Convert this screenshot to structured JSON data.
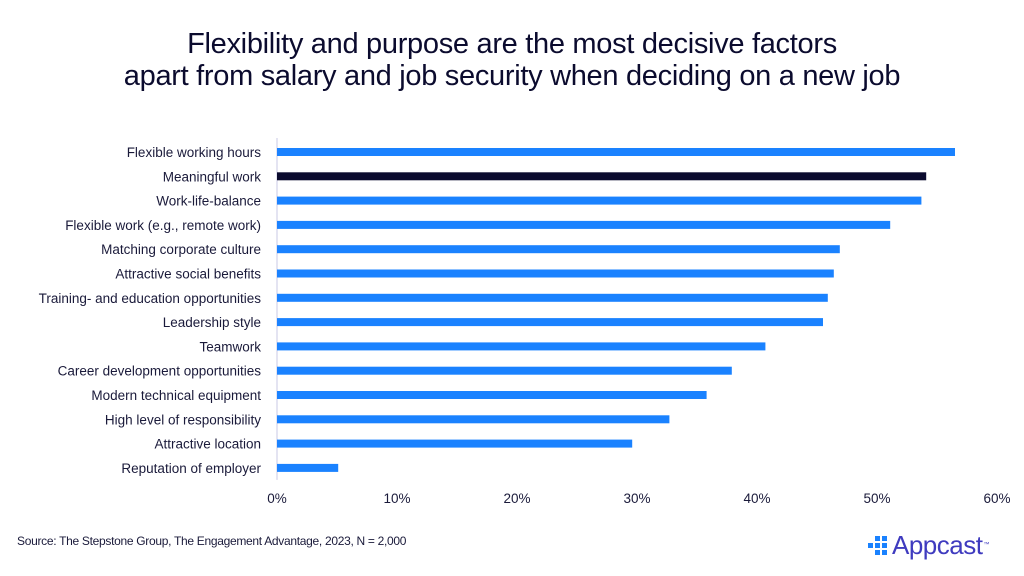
{
  "title_line1": "Flexibility and purpose are the most decisive factors",
  "title_line2": "apart from salary and job security when deciding on a new job",
  "source": "Source: The Stepstone Group, The Engagement Advantage, 2023, N = 2,000",
  "logo": {
    "text": "Appcast",
    "trademark": "™",
    "icon": "dot-grid-icon"
  },
  "colors": {
    "bar": "#1a82ff",
    "highlight": "#0b0b2e",
    "axis": "#c9c9e6",
    "text": "#1a1a3a"
  },
  "chart_data": {
    "type": "bar",
    "orientation": "horizontal",
    "title": "Flexibility and purpose are the most decisive factors apart from salary and job security when deciding on a new job",
    "xlabel": "",
    "ylabel": "",
    "xlim": [
      0,
      60
    ],
    "x_ticks": [
      "0%",
      "10%",
      "20%",
      "30%",
      "40%",
      "50%",
      "60%"
    ],
    "x_tick_values": [
      0,
      10,
      20,
      30,
      40,
      50,
      60
    ],
    "grid": false,
    "legend": "none",
    "highlighted_category": "Meaningful work",
    "categories": [
      "Flexible working hours",
      "Meaningful work",
      "Work-life-balance",
      "Flexible work (e.g., remote work)",
      "Matching corporate culture",
      "Attractive social benefits",
      "Training- and education opportunities",
      "Leadership style",
      "Teamwork",
      "Career development opportunities",
      "Modern technical equipment",
      "High level of responsibility",
      "Attractive location",
      "Reputation of employer"
    ],
    "values": [
      56.5,
      54.1,
      53.7,
      51.1,
      46.9,
      46.4,
      45.9,
      45.5,
      40.7,
      37.9,
      35.8,
      32.7,
      29.6,
      5.1
    ],
    "unit": "%"
  }
}
